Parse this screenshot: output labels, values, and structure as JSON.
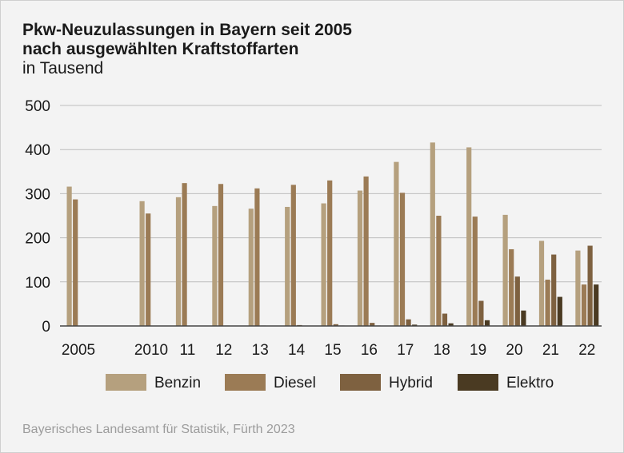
{
  "title_lines": [
    "Pkw-Neuzulassungen in Bayern seit 2005",
    "nach ausgewählten Kraftstoffarten"
  ],
  "subtitle": "in Tausend",
  "source": "Bayerisches Landesamt für Statistik, Fürth 2023",
  "chart_data": {
    "type": "bar",
    "title": "Pkw-Neuzulassungen in Bayern seit 2005 nach ausgewählten Kraftstoffarten",
    "ylabel": "in Tausend",
    "xlabel": "",
    "ylim": [
      0,
      500
    ],
    "yticks": [
      0,
      100,
      200,
      300,
      400,
      500
    ],
    "grid": true,
    "legend_position": "bottom",
    "categories": [
      "2005",
      "2010",
      "11",
      "12",
      "13",
      "14",
      "15",
      "16",
      "17",
      "18",
      "19",
      "20",
      "21",
      "22"
    ],
    "series": [
      {
        "name": "Benzin",
        "color": "#b5a07e",
        "values": [
          316,
          283,
          292,
          272,
          266,
          270,
          278,
          307,
          372,
          416,
          405,
          252,
          193,
          171
        ]
      },
      {
        "name": "Diesel",
        "color": "#9b7b55",
        "values": [
          287,
          255,
          324,
          322,
          312,
          320,
          330,
          339,
          302,
          250,
          248,
          174,
          105,
          94
        ]
      },
      {
        "name": "Hybrid",
        "color": "#7e6140",
        "values": [
          0,
          0,
          0,
          1,
          1,
          2,
          4,
          7,
          15,
          28,
          57,
          112,
          162,
          182
        ]
      },
      {
        "name": "Elektro",
        "color": "#4a3a22",
        "values": [
          0,
          0,
          0,
          0,
          0,
          0,
          1,
          1,
          3,
          6,
          13,
          35,
          66,
          94
        ]
      }
    ]
  }
}
